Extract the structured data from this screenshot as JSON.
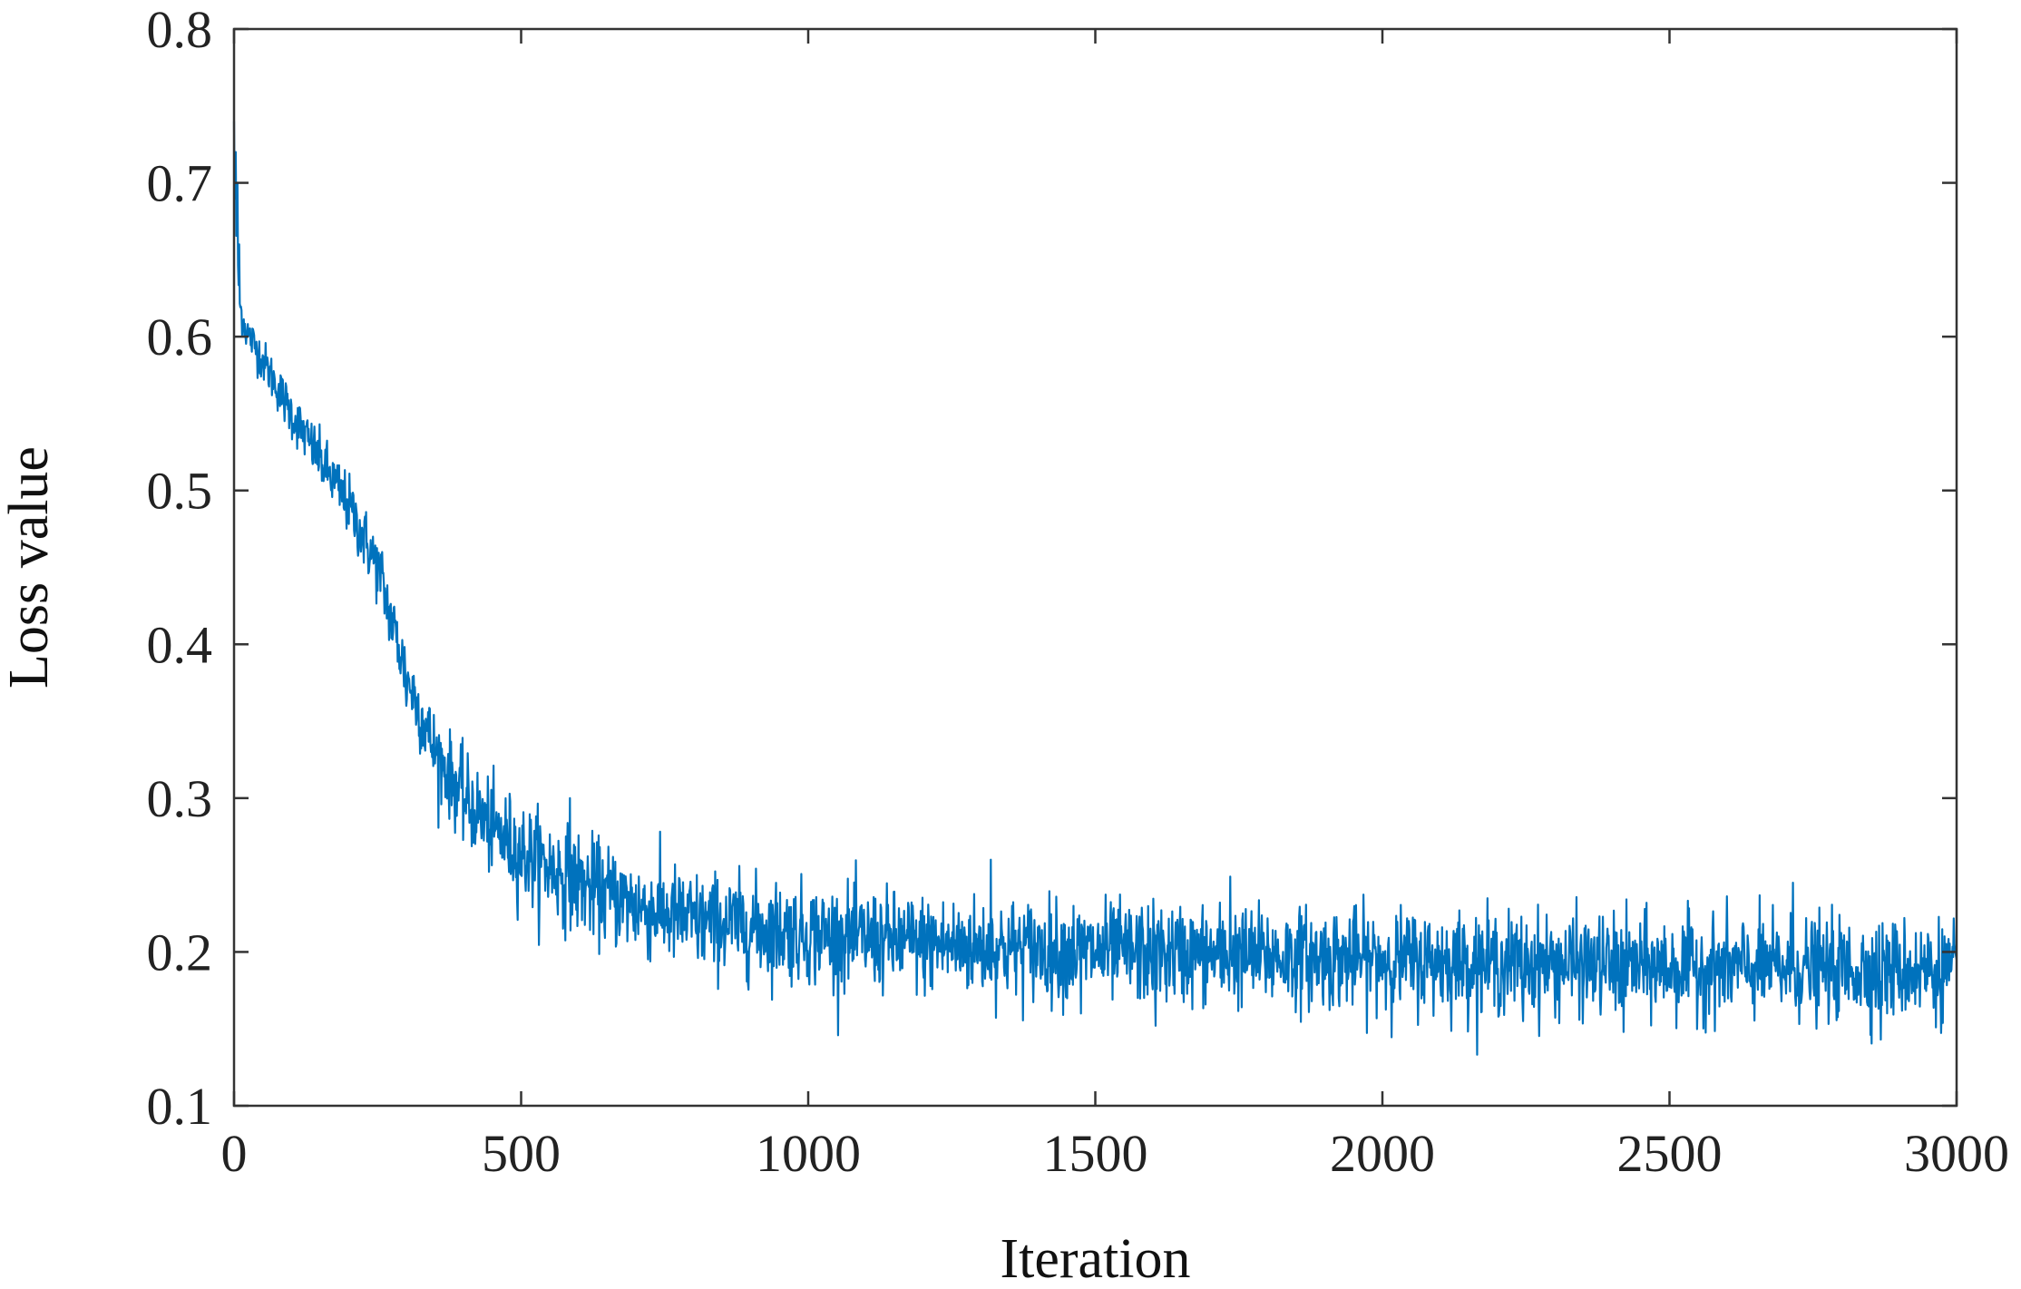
{
  "chart_data": {
    "type": "line",
    "title": "",
    "xlabel": "Iteration",
    "ylabel": "Loss value",
    "xlim": [
      0,
      3000
    ],
    "ylim": [
      0.1,
      0.8
    ],
    "x_ticks": [
      0,
      500,
      1000,
      1500,
      2000,
      2500,
      3000
    ],
    "x_tick_labels": [
      "0",
      "500",
      "1000",
      "1500",
      "2000",
      "2500",
      "3000"
    ],
    "y_ticks": [
      0.1,
      0.2,
      0.3,
      0.4,
      0.5,
      0.6,
      0.7,
      0.8
    ],
    "y_tick_labels": [
      "0.1",
      "0.2",
      "0.3",
      "0.4",
      "0.5",
      "0.6",
      "0.7",
      "0.8"
    ],
    "grid": false,
    "legend": "none",
    "series": [
      {
        "color": "#0072BD",
        "trend": {
          "x": [
            0,
            5,
            10,
            20,
            50,
            100,
            150,
            200,
            250,
            300,
            350,
            400,
            450,
            500,
            600,
            700,
            800,
            1000,
            1200,
            1500,
            2000,
            2500,
            3000
          ],
          "y": [
            0.7,
            0.66,
            0.62,
            0.605,
            0.585,
            0.55,
            0.52,
            0.49,
            0.45,
            0.38,
            0.33,
            0.3,
            0.28,
            0.265,
            0.245,
            0.23,
            0.22,
            0.212,
            0.205,
            0.2,
            0.195,
            0.19,
            0.188
          ]
        },
        "noise_amplitude": {
          "x": [
            0,
            300,
            500,
            1000,
            3000
          ],
          "y": [
            0.006,
            0.012,
            0.016,
            0.016,
            0.016
          ]
        },
        "peaks": [
          {
            "x": 0,
            "y": 0.74
          },
          {
            "x": 3,
            "y": 0.72
          },
          {
            "x": 6,
            "y": 0.7
          },
          {
            "x": 9,
            "y": 0.66
          }
        ],
        "extremes": [
          {
            "x": 258,
            "y": 0.46
          },
          {
            "x": 300,
            "y": 0.36
          },
          {
            "x": 585,
            "y": 0.3
          },
          {
            "x": 1318,
            "y": 0.26
          },
          {
            "x": 1475,
            "y": 0.16
          },
          {
            "x": 1605,
            "y": 0.152
          },
          {
            "x": 1735,
            "y": 0.249
          },
          {
            "x": 2245,
            "y": 0.155
          },
          {
            "x": 2420,
            "y": 0.148
          },
          {
            "x": 2715,
            "y": 0.245
          },
          {
            "x": 2868,
            "y": 0.143
          }
        ]
      }
    ]
  }
}
